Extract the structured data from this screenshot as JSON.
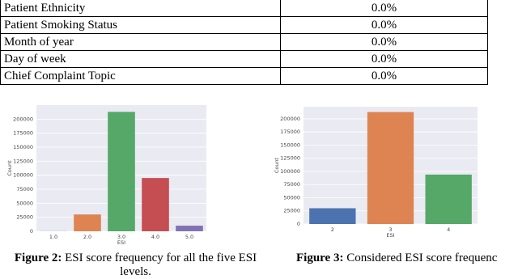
{
  "table": {
    "rows": [
      [
        "Patient Ethnicity",
        "0.0%"
      ],
      [
        "Patient Smoking Status",
        "0.0%"
      ],
      [
        "Month of year",
        "0.0%"
      ],
      [
        "Day of week",
        "0.0%"
      ],
      [
        "Chief Complaint Topic",
        "0.0%"
      ]
    ]
  },
  "figures": [
    {
      "chart_data": {
        "type": "bar",
        "categories": [
          "1.0",
          "2.0",
          "3.0",
          "4.0",
          "5.0"
        ],
        "values": [
          200,
          30000,
          213000,
          95000,
          10000
        ],
        "colors": [
          "#4c72b0",
          "#dd8452",
          "#55a868",
          "#c44e52",
          "#8172b2"
        ],
        "ylim": [
          0,
          225000
        ],
        "yticks": [
          0,
          25000,
          50000,
          75000,
          100000,
          125000,
          150000,
          175000,
          200000
        ],
        "xlabel": "ESI",
        "ylabel": "Count",
        "grid": true
      },
      "caption": {
        "label": "Figure 2:",
        "text": "ESI score frequency for all the five ESI levels."
      }
    },
    {
      "chart_data": {
        "type": "bar",
        "categories": [
          "2",
          "3",
          "4"
        ],
        "values": [
          30000,
          213000,
          94000
        ],
        "colors": [
          "#4c72b0",
          "#dd8452",
          "#55a868"
        ],
        "ylim": [
          0,
          223000
        ],
        "yticks": [
          0,
          25000,
          50000,
          75000,
          100000,
          125000,
          150000,
          175000,
          200000
        ],
        "xlabel": "ESI",
        "ylabel": "Count",
        "grid": true
      },
      "caption": {
        "label": "Figure 3:",
        "text": "Considered ESI score frequenc"
      }
    }
  ]
}
